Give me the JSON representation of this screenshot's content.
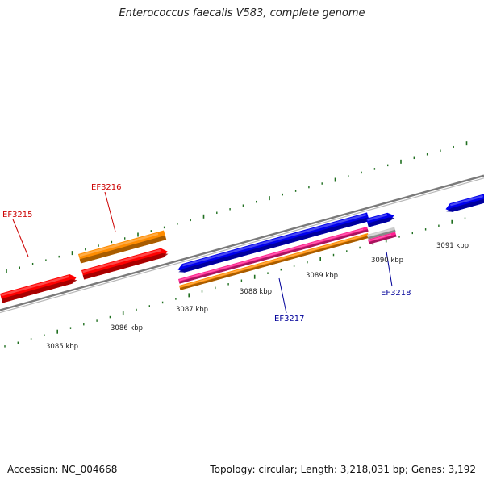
{
  "title": "Enterococcus faecalis V583, complete genome",
  "footer": {
    "accession": "Accession: NC_004668",
    "topology": "Topology: circular; Length: 3,218,031 bp; Genes: 3,192"
  },
  "colors": {
    "backbone": "#8a8a8a",
    "tick": "#1f6f1f",
    "label_red": "#cc0000",
    "label_blue": "#000099"
  },
  "kbp_labels": [
    "3085 kbp",
    "3086 kbp",
    "3087 kbp",
    "3088 kbp",
    "3089 kbp",
    "3090 kbp",
    "3091 kbp"
  ],
  "gene_labels": [
    {
      "name": "EF3215",
      "color": "#cc0000"
    },
    {
      "name": "EF3216",
      "color": "#cc0000"
    },
    {
      "name": "EF3217",
      "color": "#000099"
    },
    {
      "name": "EF3218",
      "color": "#000099"
    }
  ],
  "features": [
    {
      "name": "EF3215 CDS",
      "color": "#ff0000"
    },
    {
      "name": "EF3216 gene",
      "color": "#ff8c00"
    },
    {
      "name": "EF3216 CDS",
      "color": "#ff0000"
    },
    {
      "name": "EF3217 CDS",
      "color": "#0000ee"
    },
    {
      "name": "EF3217 misc",
      "color": "#ff2090"
    },
    {
      "name": "EF3217 gene",
      "color": "#ff8c00"
    },
    {
      "name": "EF3218 CDS",
      "color": "#0000ee"
    },
    {
      "name": "EF3218 misc",
      "color": "#cccccc"
    },
    {
      "name": "EF3218 gene",
      "color": "#ff2090"
    },
    {
      "name": "next CDS",
      "color": "#0000ee"
    }
  ]
}
